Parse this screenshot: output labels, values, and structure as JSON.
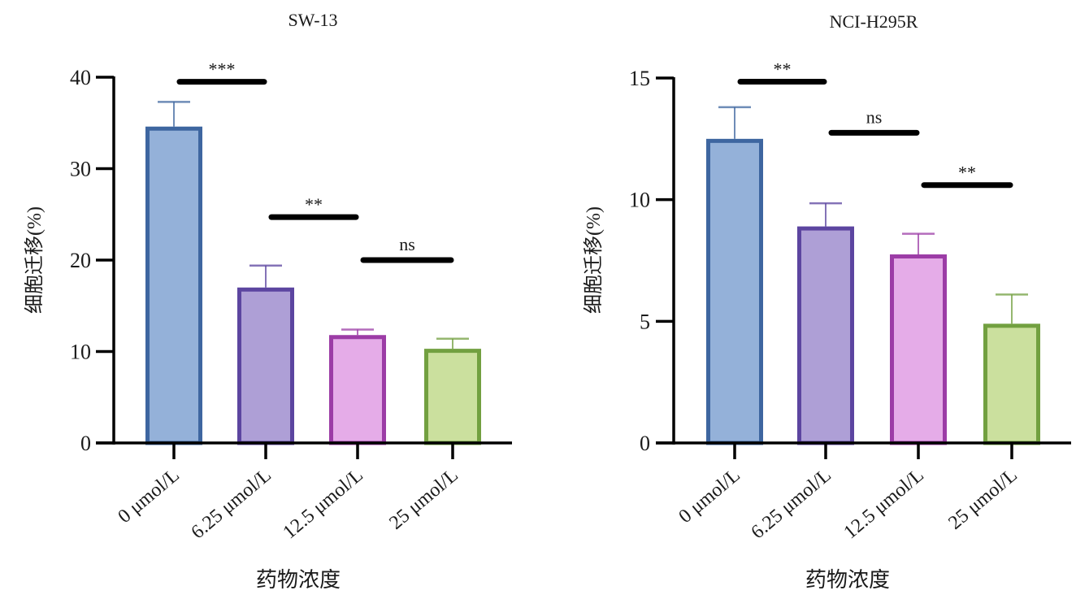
{
  "chart_data": [
    {
      "type": "bar",
      "title": "SW-13",
      "xlabel": "药物浓度",
      "ylabel": "细胞迁移(%)",
      "ylim": [
        0,
        40
      ],
      "yticks": [
        0,
        10,
        20,
        30,
        40
      ],
      "categories": [
        "0 μmol/L",
        "6.25 μmol/L",
        "12.5 μmol/L",
        "25 μmol/L"
      ],
      "values": [
        34.6,
        17.0,
        11.8,
        10.3
      ],
      "errors": [
        2.7,
        2.4,
        0.6,
        1.1
      ],
      "fill_colors": [
        "#94b1d9",
        "#ae9fd6",
        "#e5ace8",
        "#cbe09e"
      ],
      "edge_colors": [
        "#3e66a0",
        "#5c45a0",
        "#9c3ca6",
        "#72a040"
      ],
      "significance": [
        {
          "from": 0,
          "to": 1,
          "label": "***",
          "y": 39.5
        },
        {
          "from": 1,
          "to": 2,
          "label": "**",
          "y": 24.7
        },
        {
          "from": 2,
          "to": 3,
          "label": "ns",
          "y": 20.0
        }
      ]
    },
    {
      "type": "bar",
      "title": "NCI-H295R",
      "xlabel": "药物浓度",
      "ylabel": "细胞迁移(%)",
      "ylim": [
        0,
        15
      ],
      "yticks": [
        0,
        5,
        10,
        15
      ],
      "categories": [
        "0 μmol/L",
        "6.25 μmol/L",
        "12.5 μmol/L",
        "25 μmol/L"
      ],
      "values": [
        12.5,
        8.9,
        7.75,
        4.9
      ],
      "errors": [
        1.3,
        0.95,
        0.85,
        1.2
      ],
      "fill_colors": [
        "#94b1d9",
        "#ae9fd6",
        "#e5ace8",
        "#cbe09e"
      ],
      "edge_colors": [
        "#3e66a0",
        "#5c45a0",
        "#9c3ca6",
        "#72a040"
      ],
      "significance": [
        {
          "from": 0,
          "to": 1,
          "label": "**",
          "y": 14.85
        },
        {
          "from": 1,
          "to": 2,
          "label": "ns",
          "y": 12.75
        },
        {
          "from": 2,
          "to": 3,
          "label": "**",
          "y": 10.6
        }
      ]
    }
  ]
}
